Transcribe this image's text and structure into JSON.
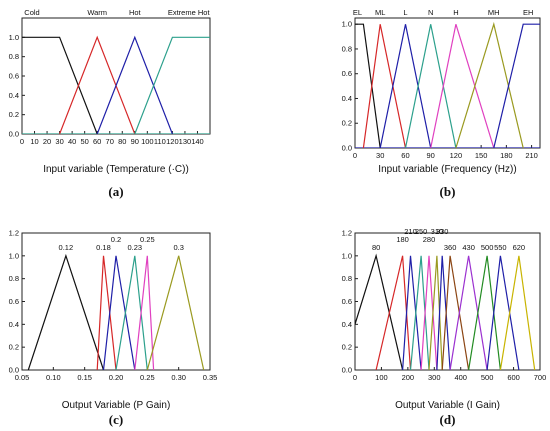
{
  "chart_data": [
    {
      "type": "line",
      "panel_label": "(a)",
      "xlabel": "Input variable (Temperature (·C))",
      "ylabel": "",
      "xlim": [
        0,
        150
      ],
      "ylim": [
        0,
        1.2
      ],
      "xticks": [
        "0",
        "10",
        "20",
        "30",
        "40",
        "50",
        "60",
        "70",
        "80",
        "90",
        "100",
        "110",
        "120",
        "130",
        "140"
      ],
      "x_major": [
        0,
        20,
        40,
        60,
        80,
        100,
        120,
        140
      ],
      "yticks": [
        "0.0",
        "0.2",
        "0.4",
        "0.6",
        "0.8",
        "1.0"
      ],
      "grid": false,
      "series": [
        {
          "name": "Cold",
          "color": "#111111",
          "x": [
            -20,
            30,
            60
          ],
          "y": [
            1,
            1,
            0
          ]
        },
        {
          "name": "Warm",
          "color": "#d62728",
          "x": [
            30,
            60,
            90
          ],
          "y": [
            0,
            1,
            0
          ]
        },
        {
          "name": "Hot",
          "color": "#1f1fa8",
          "x": [
            60,
            90,
            120
          ],
          "y": [
            0,
            1,
            0
          ]
        },
        {
          "name": "Extreme Hot",
          "color": "#2ca08c",
          "x": [
            90,
            120,
            170
          ],
          "y": [
            0,
            1,
            1
          ]
        }
      ],
      "baseline": {
        "x": [
          0,
          150
        ],
        "y": [
          0,
          0
        ],
        "color": "#2ca08c"
      }
    },
    {
      "type": "line",
      "panel_label": "(b)",
      "xlabel": "Input variable (Frequency (Hz))",
      "ylabel": "",
      "xlim": [
        0,
        220
      ],
      "ylim": [
        0,
        1.05
      ],
      "xticks": [
        "0",
        "30",
        "60",
        "90",
        "120",
        "150",
        "180",
        "210"
      ],
      "x_major": [
        0,
        30,
        60,
        90,
        120,
        150,
        180,
        210
      ],
      "yticks": [
        "0.0",
        "0.2",
        "0.4",
        "0.6",
        "0.8",
        "1.0"
      ],
      "grid": false,
      "series": [
        {
          "name": "EL",
          "color": "#111111",
          "x": [
            -20,
            10,
            30
          ],
          "y": [
            1,
            1,
            0
          ]
        },
        {
          "name": "ML",
          "color": "#d62728",
          "x": [
            10,
            30,
            60
          ],
          "y": [
            0,
            1,
            0
          ]
        },
        {
          "name": "L",
          "color": "#1f1fa8",
          "x": [
            30,
            60,
            90
          ],
          "y": [
            0,
            1,
            0
          ]
        },
        {
          "name": "N",
          "color": "#2ca08c",
          "x": [
            60,
            90,
            120
          ],
          "y": [
            0,
            1,
            0
          ]
        },
        {
          "name": "H",
          "color": "#e040c0",
          "x": [
            90,
            120,
            165
          ],
          "y": [
            0,
            1,
            0
          ]
        },
        {
          "name": "MH",
          "color": "#9a9a20",
          "x": [
            120,
            165,
            200
          ],
          "y": [
            0,
            1,
            0
          ]
        },
        {
          "name": "EH",
          "color": "#1f1fa8",
          "x": [
            165,
            200,
            240
          ],
          "y": [
            0,
            1,
            1
          ]
        }
      ],
      "baseline": {
        "x": [
          0,
          220
        ],
        "y": [
          0,
          0
        ],
        "color": "#1f1fa8"
      }
    },
    {
      "type": "line",
      "panel_label": "(c)",
      "xlabel": "Output Variable (P Gain)",
      "ylabel": "",
      "xlim": [
        0.05,
        0.35
      ],
      "ylim": [
        0,
        1.2
      ],
      "xticks": [
        "0.05",
        "0.10",
        "0.15",
        "0.20",
        "0.25",
        "0.30",
        "0.35"
      ],
      "x_major": [
        0.05,
        0.1,
        0.15,
        0.2,
        0.25,
        0.3,
        0.35
      ],
      "yticks": [
        "0.0",
        "0.2",
        "0.4",
        "0.6",
        "0.8",
        "1.0",
        "1.2"
      ],
      "grid": false,
      "series": [
        {
          "name": "0.12",
          "color": "#111111",
          "x": [
            0.06,
            0.12,
            0.18
          ],
          "y": [
            0,
            1,
            0
          ]
        },
        {
          "name": "0.18",
          "color": "#d62728",
          "x": [
            0.17,
            0.18,
            0.2
          ],
          "y": [
            0,
            1,
            0
          ]
        },
        {
          "name": "0.2",
          "color": "#1f1fa8",
          "x": [
            0.18,
            0.2,
            0.23
          ],
          "y": [
            0,
            1,
            0
          ]
        },
        {
          "name": "0.23",
          "color": "#2ca08c",
          "x": [
            0.2,
            0.23,
            0.25
          ],
          "y": [
            0,
            1,
            0
          ]
        },
        {
          "name": "0.25",
          "color": "#e040c0",
          "x": [
            0.23,
            0.25,
            0.26
          ],
          "y": [
            0,
            1,
            0
          ]
        },
        {
          "name": "0.3",
          "color": "#9a9a20",
          "x": [
            0.25,
            0.3,
            0.34
          ],
          "y": [
            0,
            1,
            0
          ]
        }
      ]
    },
    {
      "type": "line",
      "panel_label": "(d)",
      "xlabel": "Output Variable (I Gain)",
      "ylabel": "",
      "xlim": [
        0,
        700
      ],
      "ylim": [
        0,
        1.2
      ],
      "xticks": [
        "0",
        "100",
        "200",
        "300",
        "400",
        "500",
        "600",
        "700"
      ],
      "x_major": [
        0,
        100,
        200,
        300,
        400,
        500,
        600,
        700
      ],
      "yticks": [
        "0.0",
        "0.2",
        "0.4",
        "0.6",
        "0.8",
        "1.0",
        "1.2"
      ],
      "grid": false,
      "series": [
        {
          "name": "80",
          "color": "#111111",
          "x": [
            0,
            80,
            180
          ],
          "y": [
            0.4,
            1,
            0
          ]
        },
        {
          "name": "180",
          "color": "#d62728",
          "x": [
            80,
            180,
            210
          ],
          "y": [
            0,
            1,
            0
          ]
        },
        {
          "name": "210",
          "color": "#1f1fa8",
          "x": [
            180,
            210,
            250
          ],
          "y": [
            0,
            1,
            0
          ]
        },
        {
          "name": "250",
          "color": "#2ca08c",
          "x": [
            210,
            250,
            280
          ],
          "y": [
            0,
            1,
            0
          ]
        },
        {
          "name": "280",
          "color": "#e040c0",
          "x": [
            250,
            280,
            310
          ],
          "y": [
            0,
            1,
            0
          ]
        },
        {
          "name": "310",
          "color": "#9a9a20",
          "x": [
            280,
            310,
            330
          ],
          "y": [
            0,
            1,
            0
          ]
        },
        {
          "name": "330",
          "color": "#1f1fa8",
          "x": [
            310,
            330,
            360
          ],
          "y": [
            0,
            1,
            0
          ]
        },
        {
          "name": "360",
          "color": "#8b4513",
          "x": [
            330,
            360,
            430
          ],
          "y": [
            0,
            1,
            0
          ]
        },
        {
          "name": "430",
          "color": "#9b30d0",
          "x": [
            360,
            430,
            500
          ],
          "y": [
            0,
            1,
            0
          ]
        },
        {
          "name": "500",
          "color": "#228b22",
          "x": [
            430,
            500,
            550
          ],
          "y": [
            0,
            1,
            0
          ]
        },
        {
          "name": "550",
          "color": "#1f1fa8",
          "x": [
            500,
            550,
            620
          ],
          "y": [
            0,
            1,
            0
          ]
        },
        {
          "name": "620",
          "color": "#c8b400",
          "x": [
            550,
            620,
            680
          ],
          "y": [
            0,
            1,
            0
          ]
        }
      ]
    }
  ]
}
